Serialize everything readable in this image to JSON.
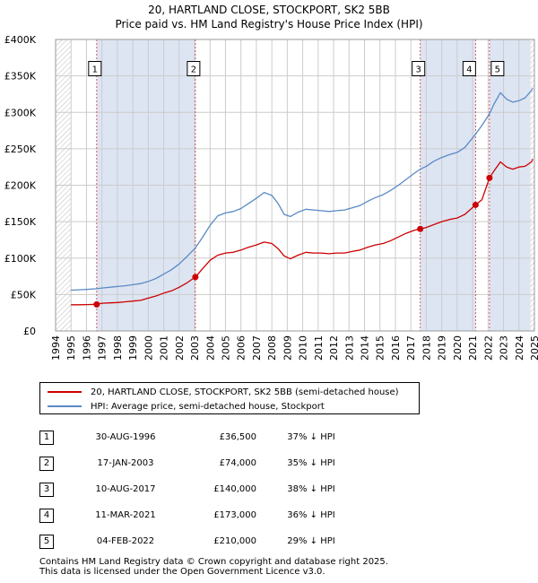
{
  "title_line1": "20, HARTLAND CLOSE, STOCKPORT, SK2 5BB",
  "title_line2": "Price paid vs. HM Land Registry's House Price Index (HPI)",
  "colors": {
    "red": "#cc0000",
    "blue": "#5a8ac6",
    "band": "#dde5f3",
    "grid": "#cccccc"
  },
  "chart_data": {
    "type": "line",
    "xlim": [
      1994.0,
      2025.0
    ],
    "ylim": [
      0,
      400000
    ],
    "yticks": [
      {
        "value": 0,
        "label": "£0"
      },
      {
        "value": 50000,
        "label": "£50K"
      },
      {
        "value": 100000,
        "label": "£100K"
      },
      {
        "value": 150000,
        "label": "£150K"
      },
      {
        "value": 200000,
        "label": "£200K"
      },
      {
        "value": 250000,
        "label": "£250K"
      },
      {
        "value": 300000,
        "label": "£300K"
      },
      {
        "value": 350000,
        "label": "£350K"
      },
      {
        "value": 400000,
        "label": "£400K"
      }
    ],
    "xticks": [
      "1994",
      "1995",
      "1996",
      "1997",
      "1998",
      "1999",
      "2000",
      "2001",
      "2002",
      "2003",
      "2004",
      "2005",
      "2006",
      "2007",
      "2008",
      "2009",
      "2010",
      "2011",
      "2012",
      "2013",
      "2014",
      "2015",
      "2016",
      "2017",
      "2018",
      "2019",
      "2020",
      "2021",
      "2022",
      "2023",
      "2024",
      "2025"
    ],
    "hatched_ranges": [
      [
        1994.0,
        1995.0
      ],
      [
        2024.75,
        2025.0
      ]
    ],
    "shaded_bands": [
      [
        1996.66,
        2003.05
      ],
      [
        2017.61,
        2021.19
      ],
      [
        2022.09,
        2024.75
      ]
    ],
    "series": [
      {
        "name": "20, HARTLAND CLOSE, STOCKPORT, SK2 5BB (semi-detached house)",
        "color": "red",
        "points": [
          [
            1995.0,
            36000
          ],
          [
            1995.5,
            36000
          ],
          [
            1996.0,
            36200
          ],
          [
            1996.66,
            36500
          ],
          [
            1997.0,
            38000
          ],
          [
            1997.5,
            38500
          ],
          [
            1998.0,
            39000
          ],
          [
            1998.5,
            40000
          ],
          [
            1999.0,
            41000
          ],
          [
            1999.5,
            42000
          ],
          [
            2000.0,
            45000
          ],
          [
            2000.5,
            48000
          ],
          [
            2001.0,
            52000
          ],
          [
            2001.5,
            55000
          ],
          [
            2002.0,
            60000
          ],
          [
            2002.5,
            66000
          ],
          [
            2003.05,
            74000
          ],
          [
            2003.5,
            85000
          ],
          [
            2004.0,
            97000
          ],
          [
            2004.5,
            104000
          ],
          [
            2005.0,
            107000
          ],
          [
            2005.5,
            108000
          ],
          [
            2006.0,
            111000
          ],
          [
            2006.5,
            115000
          ],
          [
            2007.0,
            118000
          ],
          [
            2007.5,
            122000
          ],
          [
            2008.0,
            120000
          ],
          [
            2008.4,
            113000
          ],
          [
            2008.8,
            103000
          ],
          [
            2009.2,
            99000
          ],
          [
            2009.7,
            104000
          ],
          [
            2010.2,
            108000
          ],
          [
            2010.7,
            107000
          ],
          [
            2011.2,
            107000
          ],
          [
            2011.7,
            106000
          ],
          [
            2012.2,
            107000
          ],
          [
            2012.7,
            107000
          ],
          [
            2013.2,
            109000
          ],
          [
            2013.7,
            111000
          ],
          [
            2014.2,
            115000
          ],
          [
            2014.7,
            118000
          ],
          [
            2015.2,
            120000
          ],
          [
            2015.7,
            124000
          ],
          [
            2016.2,
            129000
          ],
          [
            2016.7,
            134000
          ],
          [
            2017.2,
            138000
          ],
          [
            2017.61,
            140000
          ],
          [
            2018.0,
            142000
          ],
          [
            2018.5,
            146000
          ],
          [
            2019.0,
            150000
          ],
          [
            2019.5,
            153000
          ],
          [
            2020.0,
            155000
          ],
          [
            2020.5,
            160000
          ],
          [
            2021.19,
            173000
          ],
          [
            2021.6,
            180000
          ],
          [
            2022.09,
            210000
          ],
          [
            2022.4,
            220000
          ],
          [
            2022.8,
            232000
          ],
          [
            2023.2,
            225000
          ],
          [
            2023.6,
            222000
          ],
          [
            2024.0,
            225000
          ],
          [
            2024.4,
            226000
          ],
          [
            2024.8,
            232000
          ],
          [
            2024.9,
            236000
          ]
        ]
      },
      {
        "name": "HPI: Average price, semi-detached house, Stockport",
        "color": "blue",
        "points": [
          [
            1995.0,
            56000
          ],
          [
            1995.5,
            56500
          ],
          [
            1996.0,
            57000
          ],
          [
            1996.66,
            58000
          ],
          [
            1997.0,
            59000
          ],
          [
            1997.5,
            60000
          ],
          [
            1998.0,
            61000
          ],
          [
            1998.5,
            62000
          ],
          [
            1999.0,
            63500
          ],
          [
            1999.5,
            65000
          ],
          [
            2000.0,
            68000
          ],
          [
            2000.5,
            72000
          ],
          [
            2001.0,
            78000
          ],
          [
            2001.5,
            84000
          ],
          [
            2002.0,
            92000
          ],
          [
            2002.5,
            102000
          ],
          [
            2003.05,
            114000
          ],
          [
            2003.5,
            128000
          ],
          [
            2004.0,
            145000
          ],
          [
            2004.5,
            158000
          ],
          [
            2005.0,
            162000
          ],
          [
            2005.5,
            164000
          ],
          [
            2006.0,
            168000
          ],
          [
            2006.5,
            175000
          ],
          [
            2007.0,
            182000
          ],
          [
            2007.5,
            190000
          ],
          [
            2008.0,
            186000
          ],
          [
            2008.4,
            175000
          ],
          [
            2008.8,
            160000
          ],
          [
            2009.2,
            157000
          ],
          [
            2009.7,
            163000
          ],
          [
            2010.2,
            167000
          ],
          [
            2010.7,
            166000
          ],
          [
            2011.2,
            165000
          ],
          [
            2011.7,
            164000
          ],
          [
            2012.2,
            165000
          ],
          [
            2012.7,
            166000
          ],
          [
            2013.2,
            169000
          ],
          [
            2013.7,
            172000
          ],
          [
            2014.2,
            178000
          ],
          [
            2014.7,
            183000
          ],
          [
            2015.2,
            187000
          ],
          [
            2015.7,
            193000
          ],
          [
            2016.2,
            200000
          ],
          [
            2016.7,
            208000
          ],
          [
            2017.2,
            216000
          ],
          [
            2017.61,
            222000
          ],
          [
            2018.0,
            226000
          ],
          [
            2018.5,
            233000
          ],
          [
            2019.0,
            238000
          ],
          [
            2019.5,
            242000
          ],
          [
            2020.0,
            245000
          ],
          [
            2020.5,
            252000
          ],
          [
            2021.19,
            270000
          ],
          [
            2021.6,
            282000
          ],
          [
            2022.09,
            298000
          ],
          [
            2022.4,
            312000
          ],
          [
            2022.8,
            327000
          ],
          [
            2023.2,
            318000
          ],
          [
            2023.6,
            314000
          ],
          [
            2024.0,
            316000
          ],
          [
            2024.4,
            320000
          ],
          [
            2024.8,
            330000
          ],
          [
            2024.9,
            333000
          ]
        ]
      }
    ],
    "sales": [
      {
        "n": "1",
        "x": 1996.66,
        "y": 36500
      },
      {
        "n": "2",
        "x": 2003.05,
        "y": 74000
      },
      {
        "n": "3",
        "x": 2017.61,
        "y": 140000
      },
      {
        "n": "4",
        "x": 2021.19,
        "y": 173000
      },
      {
        "n": "5",
        "x": 2022.09,
        "y": 210000
      }
    ],
    "marker_label_value": 360000
  },
  "legend": {
    "red_label": "20, HARTLAND CLOSE, STOCKPORT, SK2 5BB (semi-detached house)",
    "blue_label": "HPI: Average price, semi-detached house, Stockport"
  },
  "table_rows": [
    {
      "n": "1",
      "date": "30-AUG-1996",
      "price": "£36,500",
      "hpi": "37% ↓ HPI"
    },
    {
      "n": "2",
      "date": "17-JAN-2003",
      "price": "£74,000",
      "hpi": "35% ↓ HPI"
    },
    {
      "n": "3",
      "date": "10-AUG-2017",
      "price": "£140,000",
      "hpi": "38% ↓ HPI"
    },
    {
      "n": "4",
      "date": "11-MAR-2021",
      "price": "£173,000",
      "hpi": "36% ↓ HPI"
    },
    {
      "n": "5",
      "date": "04-FEB-2022",
      "price": "£210,000",
      "hpi": "29% ↓ HPI"
    }
  ],
  "footer_line1": "Contains HM Land Registry data © Crown copyright and database right 2025.",
  "footer_line2": "This data is licensed under the Open Government Licence v3.0."
}
